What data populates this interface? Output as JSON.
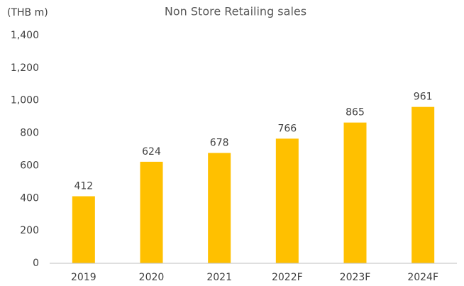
{
  "chart_data": {
    "type": "bar",
    "title": "Non Store Retailing sales",
    "y_axis_label": "(THB m)",
    "categories": [
      "2019",
      "2020",
      "2021",
      "2022F",
      "2023F",
      "2024F"
    ],
    "values": [
      412,
      624,
      678,
      766,
      865,
      961
    ],
    "color": "#ffc000",
    "ylim": [
      0,
      1400
    ],
    "yticks": [
      0,
      200,
      400,
      600,
      800,
      {
        "value": 1000,
        "label": "1,000"
      },
      {
        "value": 1200,
        "label": "1,200"
      },
      {
        "value": 1400,
        "label": "1,400"
      }
    ],
    "grid": false
  }
}
